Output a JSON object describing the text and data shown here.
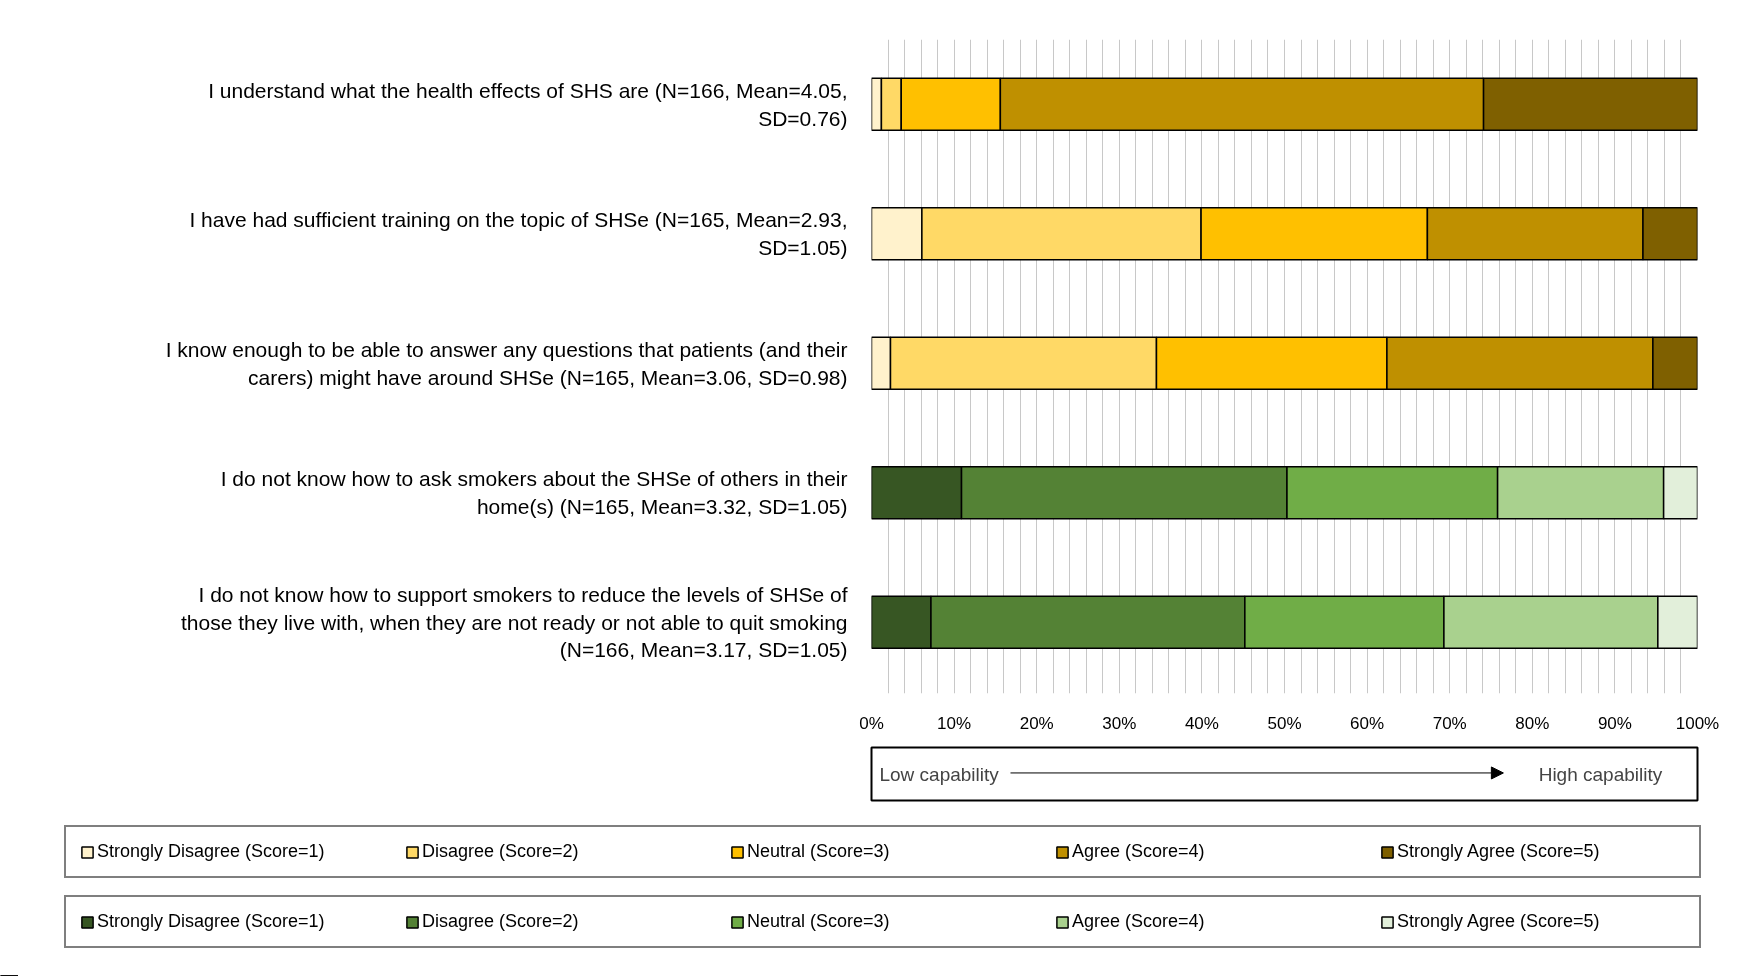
{
  "chart_data": {
    "type": "bar",
    "orientation": "horizontal",
    "stacked": true,
    "categories": [
      "I understand what the health effects of SHS are (N=166, Mean=4.05, SD=0.76)",
      "I have had sufficient training on the topic of SHSe (N=165, Mean=2.93, SD=1.05)",
      "I know enough to be able to answer any questions that patients (and their carers) might have around SHSe (N=165, Mean=3.06, SD=0.98)",
      "I do not know how to ask smokers about the SHSe of others in their home(s) (N=165, Mean=3.32, SD=1.05)",
      "I do not know how to support smokers to reduce the levels of SHSe of those they live with, when they are not ready or not able to quit smoking (N=166, Mean=3.17, SD=1.05)"
    ],
    "series": [
      {
        "name": "Strongly Disagree (Score=1)",
        "color": "#fff2cc",
        "values": [
          1.2,
          6.1,
          2.3,
          null,
          null
        ]
      },
      {
        "name": "Disagree (Score=2)",
        "color": "#ffd966",
        "values": [
          2.4,
          33.8,
          32.2,
          null,
          null
        ]
      },
      {
        "name": "Neutral (Score=3)",
        "color": "#ffc000",
        "values": [
          12.0,
          27.4,
          27.9,
          null,
          null
        ]
      },
      {
        "name": "Agree (Score=4)",
        "color": "#bf9000",
        "values": [
          58.5,
          26.1,
          32.2,
          null,
          null
        ]
      },
      {
        "name": "Strongly Agree (Score=5)",
        "color": "#7f6000",
        "values": [
          25.9,
          6.6,
          5.4,
          null,
          null
        ]
      },
      {
        "name": "Strongly Disagree (Score=1)",
        "color": "#375623",
        "values": [
          null,
          null,
          null,
          10.9,
          7.2
        ]
      },
      {
        "name": "Disagree (Score=2)",
        "color": "#548235",
        "values": [
          null,
          null,
          null,
          39.4,
          38.0
        ]
      },
      {
        "name": "Neutral (Score=3)",
        "color": "#70ad47",
        "values": [
          null,
          null,
          null,
          25.5,
          24.1
        ]
      },
      {
        "name": "Agree (Score=4)",
        "color": "#a9d18e",
        "values": [
          null,
          null,
          null,
          20.1,
          25.9
        ]
      },
      {
        "name": "Strongly Agree (Score=5)",
        "color": "#e2efda",
        "values": [
          null,
          null,
          null,
          4.1,
          4.8
        ]
      }
    ],
    "xlim": [
      0,
      100
    ],
    "xticks": [
      {
        "value": 0,
        "label": "0%"
      },
      {
        "value": 2,
        "label": null
      },
      {
        "value": 4,
        "label": null
      },
      {
        "value": 6,
        "label": null
      },
      {
        "value": 8,
        "label": null
      },
      {
        "value": 10,
        "label": "10%"
      },
      {
        "value": 12,
        "label": null
      },
      {
        "value": 14,
        "label": null
      },
      {
        "value": 16,
        "label": null
      },
      {
        "value": 18,
        "label": null
      },
      {
        "value": 20,
        "label": "20%"
      },
      {
        "value": 22,
        "label": null
      },
      {
        "value": 24,
        "label": null
      },
      {
        "value": 26,
        "label": null
      },
      {
        "value": 28,
        "label": null
      },
      {
        "value": 30,
        "label": "30%"
      },
      {
        "value": 32,
        "label": null
      },
      {
        "value": 34,
        "label": null
      },
      {
        "value": 36,
        "label": null
      },
      {
        "value": 38,
        "label": null
      },
      {
        "value": 40,
        "label": "40%"
      },
      {
        "value": 42,
        "label": null
      },
      {
        "value": 44,
        "label": null
      },
      {
        "value": 46,
        "label": null
      },
      {
        "value": 48,
        "label": null
      },
      {
        "value": 50,
        "label": "50%"
      },
      {
        "value": 52,
        "label": null
      },
      {
        "value": 54,
        "label": null
      },
      {
        "value": 56,
        "label": null
      },
      {
        "value": 58,
        "label": null
      },
      {
        "value": 60,
        "label": "60%"
      },
      {
        "value": 62,
        "label": null
      },
      {
        "value": 64,
        "label": null
      },
      {
        "value": 66,
        "label": null
      },
      {
        "value": 68,
        "label": null
      },
      {
        "value": 70,
        "label": "70%"
      },
      {
        "value": 72,
        "label": null
      },
      {
        "value": 74,
        "label": null
      },
      {
        "value": 76,
        "label": null
      },
      {
        "value": 78,
        "label": null
      },
      {
        "value": 80,
        "label": "80%"
      },
      {
        "value": 82,
        "label": null
      },
      {
        "value": 84,
        "label": null
      },
      {
        "value": 86,
        "label": null
      },
      {
        "value": 88,
        "label": null
      },
      {
        "value": 90,
        "label": "90%"
      },
      {
        "value": 92,
        "label": null
      },
      {
        "value": 94,
        "label": null
      },
      {
        "value": 96,
        "label": null
      },
      {
        "value": 98,
        "label": null
      },
      {
        "value": 100,
        "label": "100%"
      }
    ],
    "grid": "x",
    "legend": "bottom",
    "annotations": [
      "Low capability",
      "High capability"
    ]
  }
}
